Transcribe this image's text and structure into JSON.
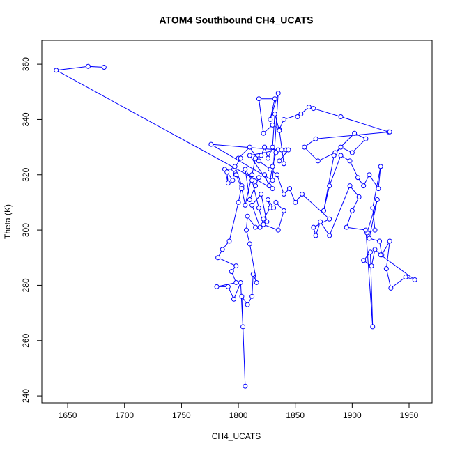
{
  "chart_data": {
    "type": "line",
    "title": "ATOM4 Southbound CH4_UCATS",
    "x_label": "CH4_UCATS",
    "y_label": "Theta (K)",
    "xlim": [
      1627.3,
      1970.2
    ],
    "ylim": [
      237.5,
      368.6
    ],
    "xticks": [
      1650,
      1700,
      1750,
      1800,
      1850,
      1900,
      1950
    ],
    "yticks": [
      240,
      260,
      280,
      300,
      320,
      340,
      360
    ],
    "series": [
      {
        "color": "#0000ff",
        "x": [
          1682,
          1668,
          1640,
          1830,
          1810,
          1835,
          1776,
          1830,
          1835,
          1828,
          1832,
          1818,
          1822,
          1830,
          1836,
          1840,
          1855,
          1852,
          1862,
          1866,
          1890,
          1932,
          1933,
          1868,
          1858,
          1870,
          1885,
          1902,
          1912,
          1900,
          1890,
          1884,
          1875,
          1880,
          1890,
          1898,
          1905,
          1910,
          1915,
          1923,
          1925,
          1918,
          1920,
          1913,
          1922,
          1915,
          1924,
          1926,
          1933,
          1930,
          1934,
          1947,
          1955,
          1925,
          1920,
          1917,
          1910,
          1916,
          1918,
          1912,
          1895,
          1900,
          1906,
          1898,
          1880,
          1872,
          1868,
          1866,
          1880,
          1856,
          1850,
          1845,
          1840,
          1834,
          1828,
          1818,
          1810,
          1800,
          1802,
          1796,
          1788,
          1791,
          1790,
          1795,
          1797,
          1803,
          1800,
          1792,
          1786,
          1782,
          1798,
          1794,
          1798,
          1781,
          1791,
          1796,
          1802,
          1804,
          1806,
          1803,
          1808,
          1812,
          1813,
          1816,
          1810,
          1807,
          1808,
          1815,
          1819,
          1812,
          1820,
          1825,
          1822,
          1828,
          1826,
          1831,
          1833,
          1840,
          1835,
          1822,
          1818,
          1812,
          1806,
          1810,
          1815,
          1818,
          1823,
          1827,
          1830,
          1833,
          1838,
          1842,
          1844,
          1836,
          1840,
          1836,
          1832,
          1830,
          1826,
          1823,
          1820,
          1815,
          1812,
          1806,
          1803,
          1798
        ],
        "values": [
          358.9,
          359.2,
          357.8,
          315,
          327,
          329,
          331,
          318,
          349.5,
          340,
          347.5,
          347.5,
          335,
          338,
          336.5,
          340,
          342,
          341,
          344.5,
          344,
          341,
          335.5,
          335.5,
          333,
          330,
          325,
          328,
          335,
          333,
          328,
          330,
          327,
          307,
          316,
          327,
          325,
          319,
          316,
          320,
          315,
          323,
          308,
          300,
          299,
          311,
          297,
          296,
          291,
          296,
          286,
          279,
          283,
          282,
          291,
          293,
          287,
          289,
          292,
          265,
          300,
          301,
          307,
          312,
          316,
          298,
          303,
          298,
          301,
          304,
          313,
          310,
          315,
          313,
          320,
          322,
          325,
          330,
          326,
          326,
          322,
          322,
          317,
          321,
          318,
          323,
          316,
          310,
          296,
          293,
          290,
          287,
          285,
          281,
          279.5,
          279.5,
          275,
          281,
          265,
          243.5,
          276,
          273,
          276,
          284,
          281,
          295,
          300,
          305,
          301,
          301,
          309,
          313,
          303,
          304,
          308,
          311,
          308,
          310,
          307,
          300,
          302,
          308,
          318,
          322,
          311,
          316,
          319,
          320,
          316,
          323,
          328,
          329,
          329,
          329,
          325,
          324,
          336,
          342,
          330,
          326,
          330,
          327,
          326,
          320,
          309,
          315,
          320
        ]
      }
    ]
  }
}
